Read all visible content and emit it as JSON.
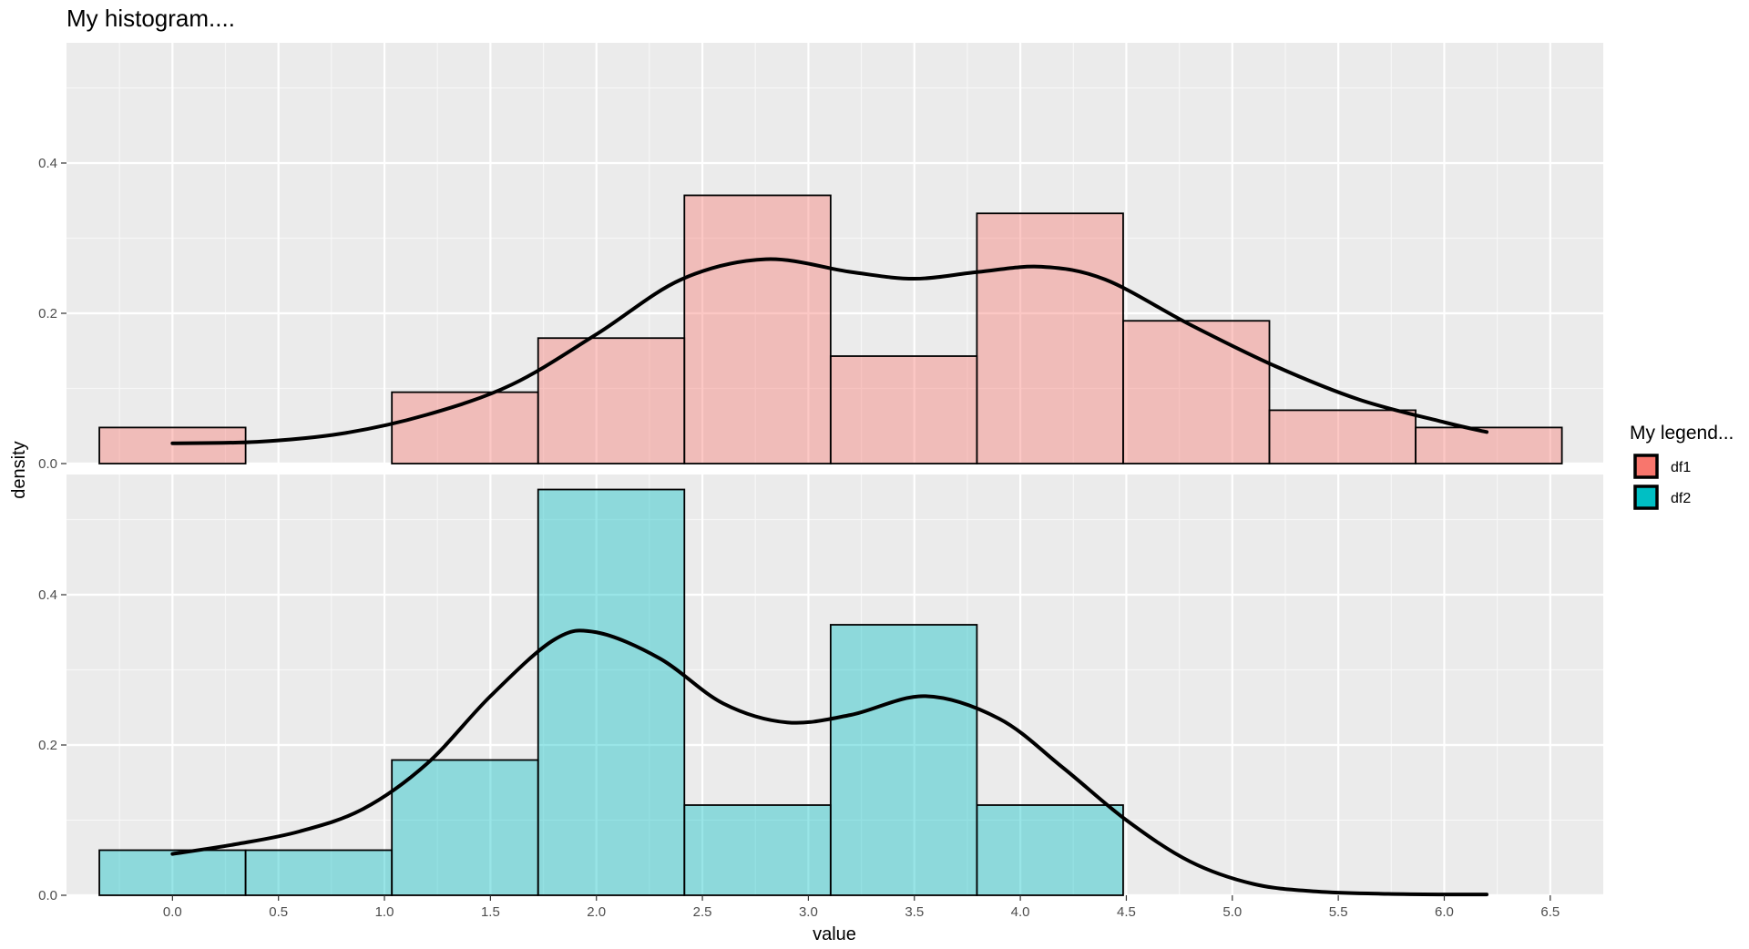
{
  "chart_data": {
    "type": "bar",
    "title": "My histogram....",
    "xlabel": "value",
    "ylabel": "density",
    "xlim": [
      -0.5,
      6.75
    ],
    "ylim": [
      0,
      0.56
    ],
    "x_ticks": [
      "0.0",
      "0.5",
      "1.0",
      "1.5",
      "2.0",
      "2.5",
      "3.0",
      "3.5",
      "4.0",
      "4.5",
      "5.0",
      "5.5",
      "6.0",
      "6.5"
    ],
    "y_ticks": [
      "0.0",
      "0.2",
      "0.4"
    ],
    "grid": true,
    "legend": {
      "title": "My legend...",
      "position": "right",
      "items": [
        {
          "label": "df1",
          "color": "#F8766D"
        },
        {
          "label": "df2",
          "color": "#00BFC4"
        }
      ]
    },
    "bin_edges": [
      -0.345,
      0.345,
      1.035,
      1.725,
      2.415,
      3.105,
      3.795,
      4.485,
      5.175,
      5.865,
      6.555
    ],
    "panels": [
      {
        "name": "df1",
        "fill": "#F8766D",
        "histogram_density": [
          0.048,
          0.0,
          0.095,
          0.167,
          0.357,
          0.143,
          0.333,
          0.19,
          0.071,
          0.048
        ],
        "density_curve": {
          "x": [
            0.0,
            0.4,
            0.8,
            1.2,
            1.6,
            2.0,
            2.4,
            2.8,
            3.2,
            3.5,
            3.8,
            4.1,
            4.4,
            4.8,
            5.2,
            5.6,
            6.0,
            6.2
          ],
          "y": [
            0.027,
            0.029,
            0.04,
            0.065,
            0.105,
            0.172,
            0.245,
            0.272,
            0.255,
            0.246,
            0.255,
            0.262,
            0.245,
            0.185,
            0.13,
            0.085,
            0.055,
            0.042
          ]
        }
      },
      {
        "name": "df2",
        "fill": "#00BFC4",
        "histogram_density": [
          0.06,
          0.06,
          0.18,
          0.54,
          0.12,
          0.36,
          0.12,
          0.0,
          0.0,
          0.0
        ],
        "density_curve": {
          "x": [
            0.0,
            0.3,
            0.6,
            0.9,
            1.2,
            1.5,
            1.8,
            2.0,
            2.3,
            2.6,
            2.9,
            3.2,
            3.55,
            3.9,
            4.2,
            4.5,
            4.8,
            5.1,
            5.4,
            5.7,
            6.0,
            6.2
          ],
          "y": [
            0.055,
            0.068,
            0.085,
            0.115,
            0.175,
            0.265,
            0.34,
            0.35,
            0.315,
            0.255,
            0.23,
            0.24,
            0.265,
            0.235,
            0.17,
            0.1,
            0.045,
            0.015,
            0.005,
            0.002,
            0.001,
            0.001
          ]
        }
      }
    ]
  }
}
